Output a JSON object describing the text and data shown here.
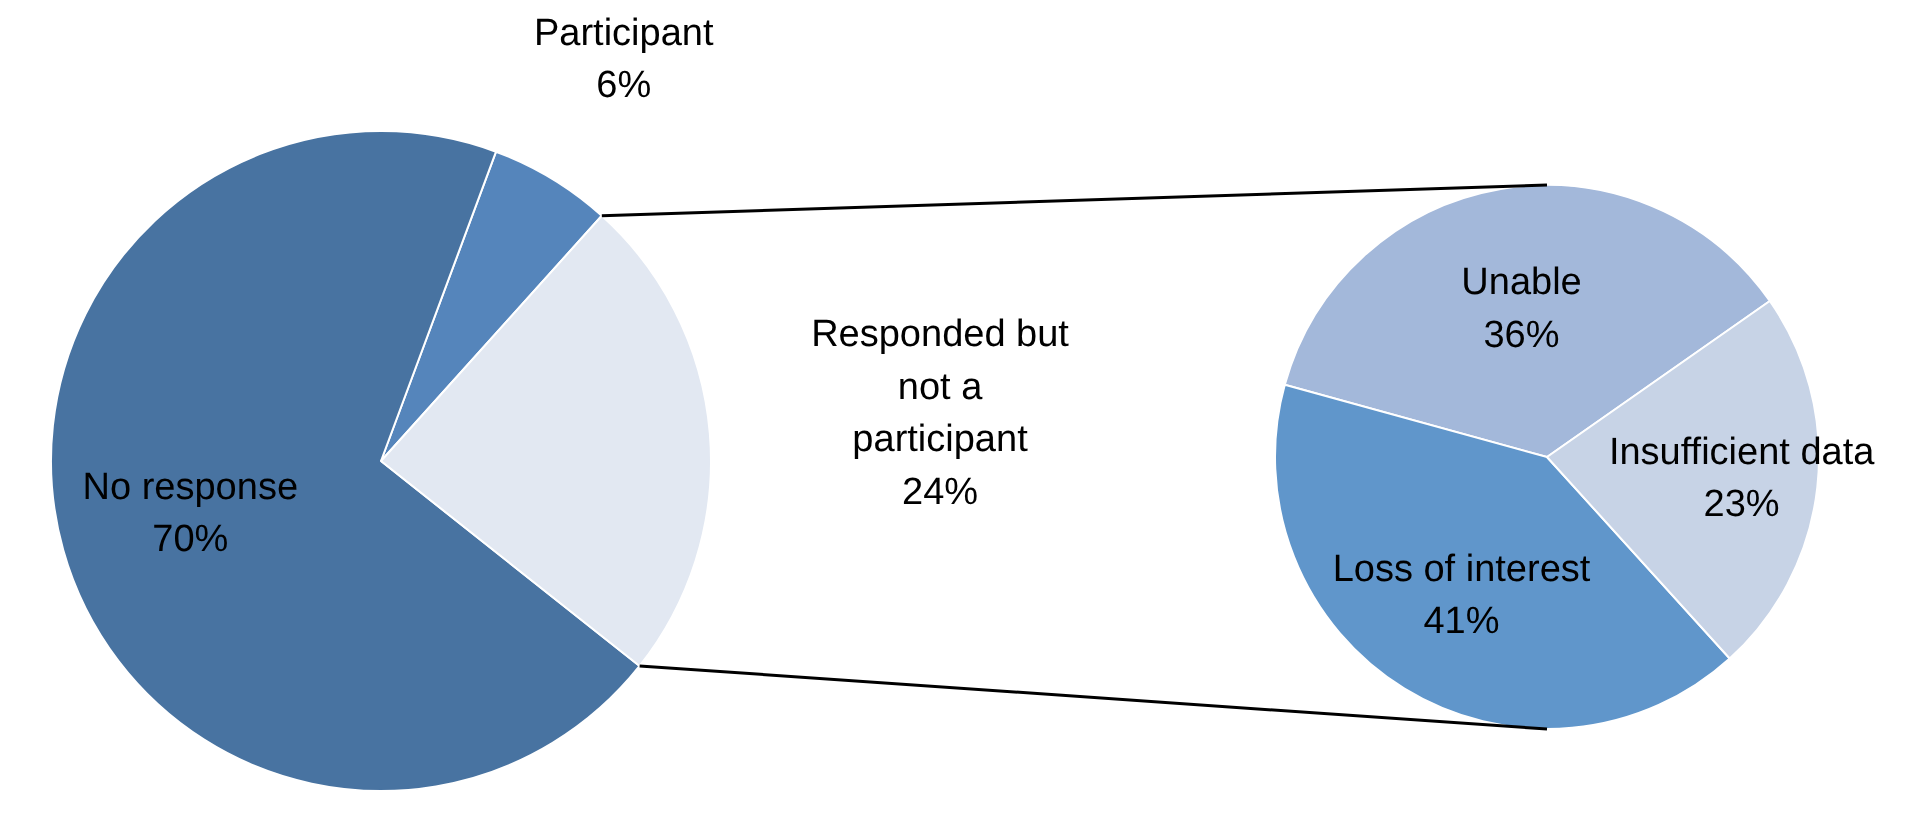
{
  "chart_data": [
    {
      "type": "pie",
      "categories": [
        "Participant",
        "No response",
        "Responded but not a participant"
      ],
      "values": [
        6,
        70,
        24
      ],
      "value_labels": [
        "6%",
        "70%",
        "24%"
      ],
      "colors": [
        "#5585bb",
        "#4873a1",
        "#e2e8f2"
      ]
    },
    {
      "type": "pie",
      "categories": [
        "Unable",
        "Loss of interest",
        "Insufficient data"
      ],
      "values": [
        36,
        41,
        23
      ],
      "value_labels": [
        "36%",
        "41%",
        "23%"
      ],
      "colors": [
        "#a3b8da",
        "#6096cb",
        "#c7d3e6"
      ]
    }
  ]
}
